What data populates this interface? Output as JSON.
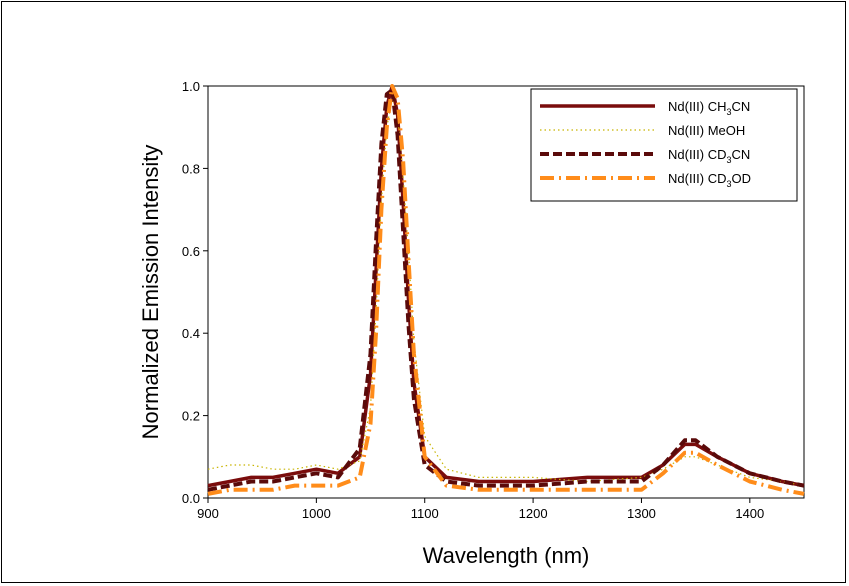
{
  "chart_data": {
    "type": "line",
    "xlabel": "Wavelength (nm)",
    "ylabel": "Normalized Emission Intensity",
    "xlim": [
      900,
      1450
    ],
    "ylim": [
      0.0,
      1.0
    ],
    "xticks": [
      "900",
      "1000",
      "1100",
      "1200",
      "1300",
      "1400"
    ],
    "yticks": [
      "0.0",
      "0.2",
      "0.4",
      "0.6",
      "0.8",
      "1.0"
    ],
    "grid": false,
    "legend_position": "top-right",
    "series": [
      {
        "name": "Nd(III) CH3CN",
        "label_parts": [
          "Nd(III) CH",
          "3",
          "CN"
        ],
        "color": "#7a0c0c",
        "style": "solid",
        "x": [
          900,
          920,
          940,
          960,
          980,
          1000,
          1020,
          1040,
          1050,
          1055,
          1060,
          1065,
          1070,
          1075,
          1080,
          1085,
          1090,
          1100,
          1120,
          1150,
          1200,
          1250,
          1300,
          1320,
          1340,
          1350,
          1370,
          1400,
          1430,
          1450
        ],
        "y": [
          0.03,
          0.04,
          0.05,
          0.05,
          0.06,
          0.07,
          0.06,
          0.1,
          0.3,
          0.55,
          0.8,
          0.95,
          1.0,
          0.93,
          0.72,
          0.48,
          0.28,
          0.1,
          0.05,
          0.04,
          0.04,
          0.05,
          0.05,
          0.08,
          0.13,
          0.13,
          0.1,
          0.06,
          0.04,
          0.03
        ]
      },
      {
        "name": "Nd(III) MeOH",
        "label_parts": [
          "Nd(III) MeOH"
        ],
        "color": "#c8b400",
        "style": "dotted",
        "x": [
          900,
          920,
          940,
          960,
          980,
          1000,
          1020,
          1040,
          1050,
          1055,
          1060,
          1065,
          1070,
          1075,
          1080,
          1085,
          1090,
          1100,
          1120,
          1150,
          1200,
          1250,
          1300,
          1320,
          1340,
          1350,
          1370,
          1400,
          1430,
          1450
        ],
        "y": [
          0.07,
          0.08,
          0.08,
          0.07,
          0.07,
          0.08,
          0.07,
          0.09,
          0.22,
          0.45,
          0.72,
          0.9,
          0.97,
          0.93,
          0.78,
          0.6,
          0.38,
          0.15,
          0.07,
          0.05,
          0.05,
          0.04,
          0.05,
          0.07,
          0.1,
          0.1,
          0.08,
          0.05,
          0.04,
          0.03
        ]
      },
      {
        "name": "Nd(III) CD3CN",
        "label_parts": [
          "Nd(III) CD",
          "3",
          "CN"
        ],
        "color": "#5a0a0a",
        "style": "dashed",
        "x": [
          900,
          920,
          940,
          960,
          980,
          1000,
          1020,
          1040,
          1050,
          1055,
          1060,
          1065,
          1070,
          1075,
          1080,
          1085,
          1090,
          1100,
          1120,
          1150,
          1200,
          1250,
          1300,
          1320,
          1340,
          1350,
          1370,
          1400,
          1430,
          1450
        ],
        "y": [
          0.02,
          0.03,
          0.04,
          0.04,
          0.05,
          0.06,
          0.05,
          0.12,
          0.35,
          0.62,
          0.86,
          0.98,
          0.99,
          0.88,
          0.65,
          0.42,
          0.24,
          0.08,
          0.04,
          0.03,
          0.03,
          0.04,
          0.04,
          0.08,
          0.14,
          0.14,
          0.1,
          0.06,
          0.04,
          0.03
        ]
      },
      {
        "name": "Nd(III) CD3OD",
        "label_parts": [
          "Nd(III) CD",
          "3",
          "OD"
        ],
        "color": "#ff8c1a",
        "style": "dashdot",
        "x": [
          900,
          920,
          940,
          960,
          980,
          1000,
          1020,
          1040,
          1050,
          1055,
          1060,
          1065,
          1070,
          1075,
          1080,
          1085,
          1090,
          1100,
          1120,
          1150,
          1200,
          1250,
          1300,
          1320,
          1340,
          1350,
          1370,
          1400,
          1430,
          1450
        ],
        "y": [
          0.01,
          0.02,
          0.02,
          0.02,
          0.03,
          0.03,
          0.03,
          0.05,
          0.18,
          0.4,
          0.7,
          0.9,
          1.0,
          0.97,
          0.82,
          0.58,
          0.35,
          0.1,
          0.03,
          0.02,
          0.02,
          0.02,
          0.02,
          0.06,
          0.11,
          0.11,
          0.08,
          0.04,
          0.02,
          0.01
        ]
      }
    ]
  }
}
